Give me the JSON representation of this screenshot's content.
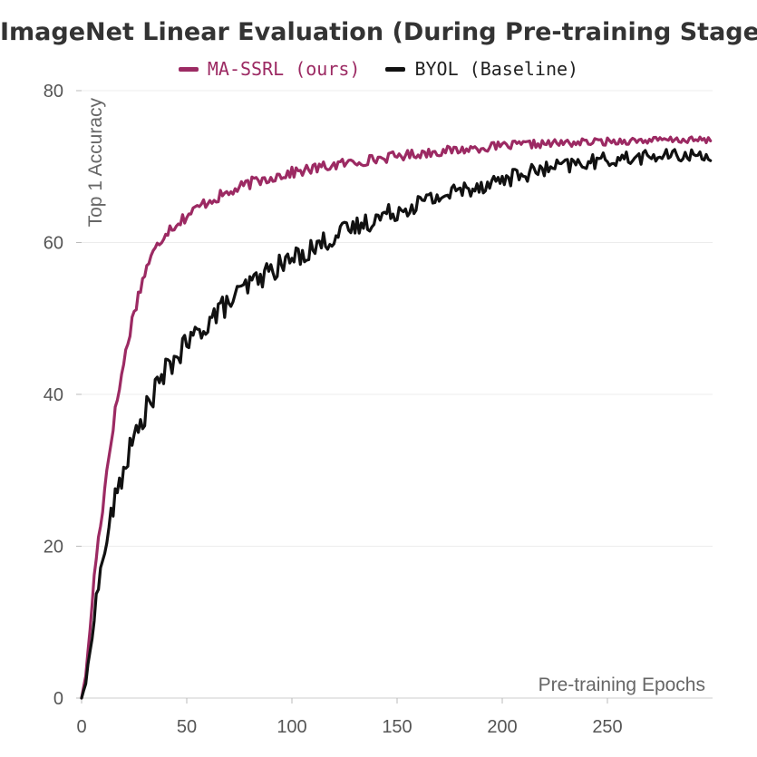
{
  "chart_data": {
    "type": "line",
    "title": "ImageNet Linear Evaluation (During Pre-training Stage)",
    "xlabel": "Pre-training Epochs",
    "ylabel": "Top 1 Accuracy",
    "xlim": [
      0,
      300
    ],
    "ylim": [
      0,
      80
    ],
    "x_ticks": [
      0,
      50,
      100,
      150,
      200,
      250
    ],
    "y_ticks": [
      0,
      20,
      40,
      60,
      80
    ],
    "grid": "horizontal",
    "legend_position": "top-center",
    "series": [
      {
        "name": "MA-SSRL (ours)",
        "color": "#9c2a63",
        "x": [
          0,
          2,
          4,
          6,
          8,
          10,
          12,
          15,
          18,
          20,
          22,
          25,
          28,
          30,
          32,
          35,
          38,
          40,
          45,
          50,
          55,
          60,
          70,
          80,
          90,
          100,
          110,
          120,
          130,
          140,
          150,
          160,
          170,
          180,
          190,
          200,
          210,
          220,
          230,
          240,
          250,
          260,
          270,
          280,
          290,
          299
        ],
        "y": [
          0,
          3,
          9,
          16,
          21,
          25,
          30,
          36,
          41,
          44,
          47,
          51,
          54,
          56,
          57.5,
          59,
          60.5,
          61.5,
          62.5,
          63.5,
          64.5,
          65.5,
          66.5,
          67.8,
          68.6,
          69.2,
          69.7,
          70.2,
          70.6,
          71,
          71.4,
          71.7,
          72,
          72.2,
          72.5,
          72.7,
          72.9,
          73,
          73.1,
          73.2,
          73.3,
          73.4,
          73.45,
          73.5,
          73.5,
          73.5
        ]
      },
      {
        "name": "BYOL (Baseline)",
        "color": "#111111",
        "x": [
          0,
          2,
          4,
          6,
          8,
          10,
          12,
          15,
          18,
          20,
          22,
          25,
          28,
          30,
          35,
          40,
          45,
          50,
          55,
          60,
          65,
          70,
          80,
          90,
          100,
          110,
          120,
          130,
          140,
          150,
          160,
          170,
          180,
          190,
          200,
          210,
          220,
          230,
          240,
          250,
          260,
          270,
          280,
          290,
          299
        ],
        "y": [
          0,
          2,
          6,
          11,
          15,
          18,
          21,
          25,
          28,
          30,
          32,
          34,
          36,
          37.5,
          40.5,
          43,
          45,
          46.5,
          48,
          49.5,
          51,
          52,
          54.5,
          56.3,
          57.8,
          59.3,
          60.8,
          62,
          63.2,
          64.2,
          65.2,
          66,
          66.9,
          67.6,
          68.3,
          69,
          69.6,
          70.1,
          70.5,
          70.9,
          71.1,
          71.3,
          71.4,
          71.5,
          71.5
        ]
      }
    ]
  }
}
